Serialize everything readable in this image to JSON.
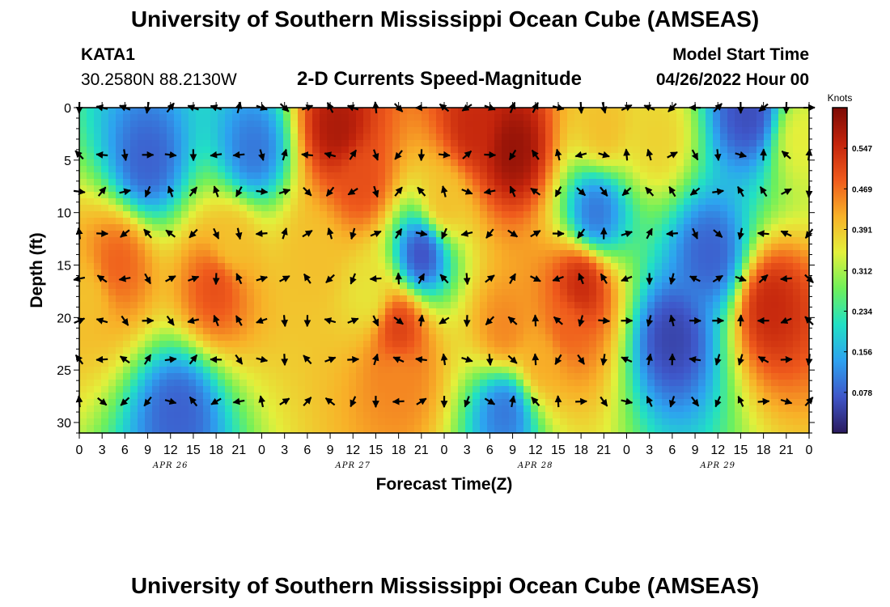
{
  "page": {
    "title": "University of Southern Mississippi Ocean Cube (AMSEAS)",
    "station_id": "KATA1",
    "coords": "30.2580N  88.2130W",
    "subtitle": "2-D Currents Speed-Magnitude",
    "model_start_label": "Model Start Time",
    "model_start_value": "04/26/2022 Hour 00",
    "footer_title": "University of Southern Mississippi Ocean Cube (AMSEAS)"
  },
  "chart_data": {
    "type": "heatmap",
    "title": "2-D Currents Speed-Magnitude",
    "xlabel": "Forecast Time(Z)",
    "ylabel": "Depth (ft)",
    "x_range_hours": [
      0,
      96
    ],
    "y_range": [
      0,
      31
    ],
    "y_ticks": [
      0,
      5,
      10,
      15,
      20,
      25,
      30
    ],
    "x_tick_labels": [
      "0",
      "3",
      "6",
      "9",
      "12",
      "15",
      "18",
      "21",
      "0",
      "3",
      "6",
      "9",
      "12",
      "15",
      "18",
      "21",
      "0",
      "3",
      "6",
      "9",
      "12",
      "15",
      "18",
      "21",
      "0",
      "3",
      "6",
      "9",
      "12",
      "15",
      "18",
      "21",
      "0"
    ],
    "date_labels": [
      {
        "text": "APR 26",
        "hour": 12
      },
      {
        "text": "APR 27",
        "hour": 36
      },
      {
        "text": "APR 28",
        "hour": 60
      },
      {
        "text": "APR 29",
        "hour": 84
      }
    ],
    "colorbar": {
      "label": "Knots",
      "min": 0.0,
      "max": 0.625,
      "ticks": [
        "0.547",
        "0.469",
        "0.391",
        "0.312",
        "0.234",
        "0.156",
        "0.078"
      ],
      "tick_values": [
        0.547,
        0.469,
        0.391,
        0.312,
        0.234,
        0.156,
        0.078
      ],
      "colors": [
        "#2a1a5e",
        "#3f56c9",
        "#2da2f0",
        "#21e0c5",
        "#6ff05a",
        "#e3f03b",
        "#f8b128",
        "#ef5a1c",
        "#c3240c",
        "#7c0a05"
      ]
    },
    "vector_depths_ft": [
      0,
      4.5,
      8,
      12,
      16.3,
      20.3,
      24,
      28
    ],
    "vector_hours": [
      0,
      3,
      6,
      9,
      12,
      15,
      18,
      21,
      24,
      27,
      30,
      33,
      36,
      39,
      42,
      45,
      48,
      51,
      54,
      57,
      60,
      63,
      66,
      69,
      72,
      75,
      78,
      81,
      84,
      87,
      90,
      93,
      96
    ],
    "speed_centers": [
      {
        "hour": 34,
        "depth": 2,
        "speed": 0.58
      },
      {
        "hour": 37,
        "depth": 7,
        "speed": 0.5
      },
      {
        "hour": 42,
        "depth": 21,
        "speed": 0.52
      },
      {
        "hour": 42,
        "depth": 26,
        "speed": 0.45
      },
      {
        "hour": 52,
        "depth": 2,
        "speed": 0.55
      },
      {
        "hour": 48,
        "depth": 9,
        "speed": 0.4
      },
      {
        "hour": 57,
        "depth": 4,
        "speed": 0.6
      },
      {
        "hour": 56,
        "depth": 21,
        "speed": 0.45
      },
      {
        "hour": 66,
        "depth": 17,
        "speed": 0.55
      },
      {
        "hour": 64,
        "depth": 21,
        "speed": 0.48
      },
      {
        "hour": 61,
        "depth": 24,
        "speed": 0.42
      },
      {
        "hour": 69,
        "depth": 2,
        "speed": 0.4
      },
      {
        "hour": 91,
        "depth": 19,
        "speed": 0.55
      },
      {
        "hour": 1,
        "depth": 18,
        "speed": 0.4
      },
      {
        "hour": 5,
        "depth": 15,
        "speed": 0.48
      },
      {
        "hour": 18,
        "depth": 17,
        "speed": 0.5
      },
      {
        "hour": 20,
        "depth": 13,
        "speed": 0.4
      },
      {
        "hour": 31,
        "depth": 14,
        "speed": 0.4
      },
      {
        "hour": 76,
        "depth": 3,
        "speed": 0.38
      },
      {
        "hour": 95,
        "depth": 3,
        "speed": 0.35
      },
      {
        "hour": 38,
        "depth": 18,
        "speed": 0.36
      },
      {
        "hour": 23,
        "depth": 4,
        "speed": 0.1
      },
      {
        "hour": 9,
        "depth": 5,
        "speed": 0.08
      },
      {
        "hour": 45,
        "depth": 14,
        "speed": 0.06
      },
      {
        "hour": 78,
        "depth": 22,
        "speed": 0.05
      },
      {
        "hour": 83,
        "depth": 14,
        "speed": 0.08
      },
      {
        "hour": 68,
        "depth": 10,
        "speed": 0.1
      },
      {
        "hour": 88,
        "depth": 0.5,
        "speed": 0.06
      },
      {
        "hour": 13,
        "depth": 29,
        "speed": 0.08
      },
      {
        "hour": 56,
        "depth": 29,
        "speed": 0.1
      }
    ]
  }
}
